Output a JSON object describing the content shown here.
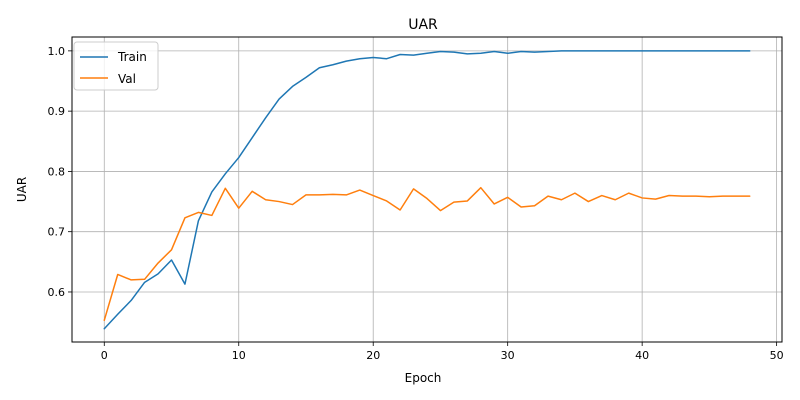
{
  "chart_data": {
    "type": "line",
    "title": "UAR",
    "xlabel": "Epoch",
    "ylabel": "UAR",
    "xlim": [
      -2.4,
      50.4
    ],
    "ylim": [
      0.517,
      1.023
    ],
    "xticks": [
      0,
      10,
      20,
      30,
      40,
      50
    ],
    "yticks": [
      0.6,
      0.7,
      0.8,
      0.9,
      1.0
    ],
    "xtick_labels": [
      "0",
      "10",
      "20",
      "30",
      "40",
      "50"
    ],
    "ytick_labels": [
      "0.6",
      "0.7",
      "0.8",
      "0.9",
      "1.0"
    ],
    "grid": true,
    "legend_position": "top-left",
    "x": [
      0,
      1,
      2,
      3,
      4,
      5,
      6,
      7,
      8,
      9,
      10,
      11,
      12,
      13,
      14,
      15,
      16,
      17,
      18,
      19,
      20,
      21,
      22,
      23,
      24,
      25,
      26,
      27,
      28,
      29,
      30,
      31,
      32,
      33,
      34,
      35,
      36,
      37,
      38,
      39,
      40,
      41,
      42,
      43,
      44,
      45,
      46,
      47,
      48
    ],
    "series": [
      {
        "name": "Train",
        "color": "#1f77b4",
        "values": [
          0.539,
          0.563,
          0.586,
          0.616,
          0.63,
          0.653,
          0.613,
          0.718,
          0.766,
          0.796,
          0.823,
          0.856,
          0.889,
          0.92,
          0.941,
          0.956,
          0.972,
          0.977,
          0.983,
          0.987,
          0.989,
          0.987,
          0.994,
          0.993,
          0.996,
          0.999,
          0.998,
          0.995,
          0.996,
          0.999,
          0.996,
          0.999,
          0.998,
          0.999,
          1.0,
          1.0,
          1.0,
          1.0,
          1.0,
          1.0,
          1.0,
          1.0,
          1.0,
          1.0,
          1.0,
          1.0,
          1.0,
          1.0,
          1.0
        ]
      },
      {
        "name": "Val",
        "color": "#ff7f0e",
        "values": [
          0.553,
          0.629,
          0.62,
          0.621,
          0.648,
          0.67,
          0.723,
          0.732,
          0.727,
          0.772,
          0.739,
          0.767,
          0.753,
          0.75,
          0.745,
          0.761,
          0.761,
          0.762,
          0.761,
          0.769,
          0.76,
          0.751,
          0.736,
          0.771,
          0.755,
          0.735,
          0.749,
          0.751,
          0.773,
          0.746,
          0.757,
          0.741,
          0.743,
          0.759,
          0.753,
          0.764,
          0.75,
          0.76,
          0.753,
          0.764,
          0.756,
          0.754,
          0.76,
          0.759,
          0.759,
          0.758,
          0.759,
          0.759,
          0.759
        ]
      }
    ]
  }
}
